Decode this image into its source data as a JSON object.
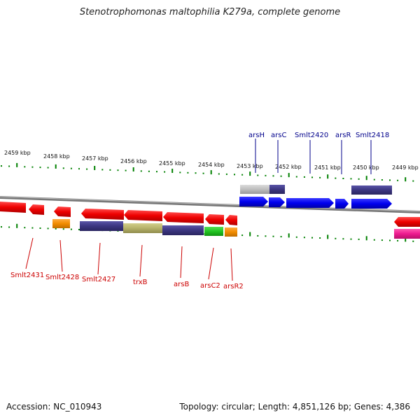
{
  "title": "Stenotrophomonas maltophilia K279a, complete genome",
  "footer": {
    "accession": "Accession: NC_010943",
    "topology": "Topology: circular; Length: 4,851,126 bp; Genes: 4,386"
  },
  "kbp_labels": [
    "2459 kbp",
    "2458 kbp",
    "2457 kbp",
    "2456 kbp",
    "2455 kbp",
    "2454 kbp",
    "2453 kbp",
    "2452 kbp",
    "2451 kbp",
    "2450 kbp",
    "2449 kbp"
  ],
  "top_genes": [
    "arsH",
    "arsC",
    "Smlt2420",
    "arsR",
    "Smlt2418"
  ],
  "bottom_genes": [
    "Smlt2431",
    "Smlt2428",
    "Smlt2427",
    "trxB",
    "arsB",
    "arsC2",
    "arsR2"
  ],
  "colors": {
    "forward_gene": "#0000ee",
    "reverse_gene": "#ee0000",
    "top_label": "#00008b",
    "bottom_label": "#cc0000",
    "tick": "#008000",
    "backbone": "#808080",
    "cog_purple": "#3b3580",
    "cog_gray": "#bdbdbd",
    "cog_olive": "#b6b26a",
    "cog_orange": "#f28c00",
    "cog_green": "#22c422",
    "cog_magenta": "#ee1a8f"
  }
}
